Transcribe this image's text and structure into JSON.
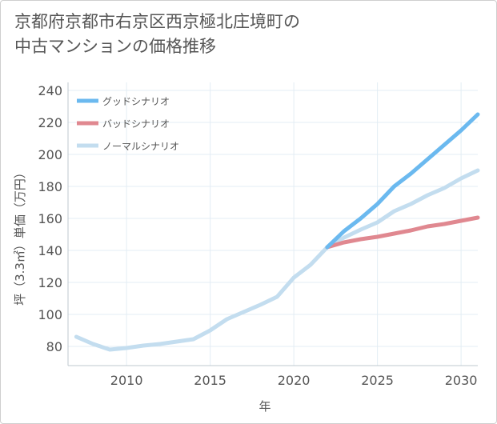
{
  "title_lines": [
    "京都府京都市右京区西京極北庄境町の",
    "中古マンションの価格推移"
  ],
  "chart_data": {
    "type": "line",
    "title": "京都府京都市右京区西京極北庄境町の中古マンションの価格推移",
    "xlabel": "年",
    "ylabel": "坪（3.3㎡）単価（万円）",
    "xlim": [
      2006.5,
      2031
    ],
    "ylim": [
      68,
      245
    ],
    "x_ticks": [
      "2010",
      "2015",
      "2020",
      "2025",
      "2030"
    ],
    "y_ticks": [
      "80",
      "100",
      "120",
      "140",
      "160",
      "180",
      "200",
      "220",
      "240"
    ],
    "grid": true,
    "legend_position": "top-left",
    "series": [
      {
        "name": "グッドシナリオ",
        "color": "#6bb9ef",
        "points": [
          [
            2022,
            142
          ],
          [
            2023,
            152
          ],
          [
            2024,
            160
          ],
          [
            2025,
            169
          ],
          [
            2026,
            180
          ],
          [
            2027,
            188
          ],
          [
            2028,
            197
          ],
          [
            2029,
            206
          ],
          [
            2030,
            215
          ],
          [
            2031,
            225
          ]
        ]
      },
      {
        "name": "バッドシナリオ",
        "color": "#e08890",
        "points": [
          [
            2022,
            142
          ],
          [
            2023,
            145
          ],
          [
            2024,
            147
          ],
          [
            2025,
            148.5
          ],
          [
            2026,
            150.5
          ],
          [
            2027,
            152.5
          ],
          [
            2028,
            155
          ],
          [
            2029,
            156.5
          ],
          [
            2030,
            158.5
          ],
          [
            2031,
            160.5
          ]
        ]
      },
      {
        "name": "ノーマルシナリオ",
        "color": "#c3ddef",
        "points": [
          [
            2007,
            86
          ],
          [
            2008,
            81.5
          ],
          [
            2009,
            78
          ],
          [
            2010,
            79
          ],
          [
            2011,
            80.5
          ],
          [
            2012,
            81.5
          ],
          [
            2013,
            83
          ],
          [
            2014,
            84.5
          ],
          [
            2015,
            90
          ],
          [
            2016,
            97
          ],
          [
            2017,
            101.5
          ],
          [
            2018,
            106
          ],
          [
            2019,
            111
          ],
          [
            2020,
            123
          ],
          [
            2021,
            131
          ],
          [
            2022,
            142
          ],
          [
            2023,
            148
          ],
          [
            2024,
            153
          ],
          [
            2025,
            157.5
          ],
          [
            2026,
            164.5
          ],
          [
            2027,
            169
          ],
          [
            2028,
            174.5
          ],
          [
            2029,
            179
          ],
          [
            2030,
            185
          ],
          [
            2031,
            190
          ]
        ]
      }
    ]
  }
}
